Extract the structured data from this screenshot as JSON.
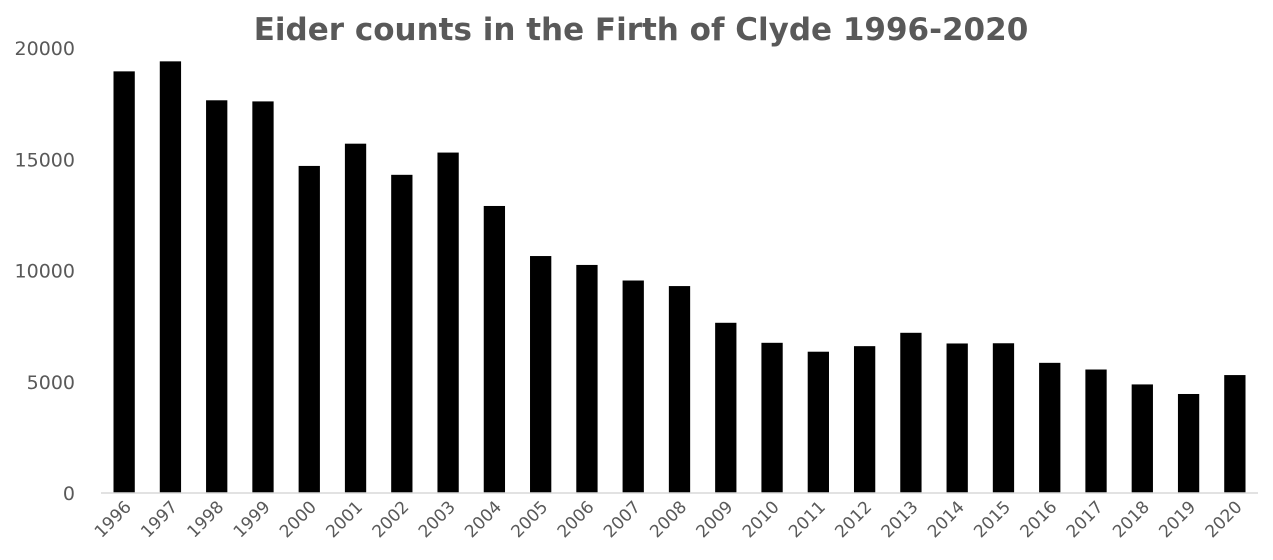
{
  "chart_data": {
    "type": "bar",
    "title": "Eider counts in the Firth of Clyde 1996-2020",
    "xlabel": "",
    "ylabel": "",
    "categories": [
      "1996",
      "1997",
      "1998",
      "1999",
      "2000",
      "2001",
      "2002",
      "2003",
      "2004",
      "2005",
      "2006",
      "2007",
      "2008",
      "2009",
      "2010",
      "2011",
      "2012",
      "2013",
      "2014",
      "2015",
      "2016",
      "2017",
      "2018",
      "2019",
      "2020"
    ],
    "series": [
      {
        "values": [
          18950,
          19400,
          17650,
          17600,
          14700,
          15700,
          14300,
          15300,
          12900,
          10650,
          10250,
          9550,
          9300,
          7650,
          6750,
          6350,
          6600,
          7200,
          6720,
          6730,
          5850,
          5550,
          4880,
          4450,
          5300
        ],
        "color": "#000000"
      }
    ],
    "ylim": [
      0,
      20000
    ],
    "yticks": [
      0,
      5000,
      10000,
      15000,
      20000
    ],
    "grid": false,
    "legend": "none"
  }
}
